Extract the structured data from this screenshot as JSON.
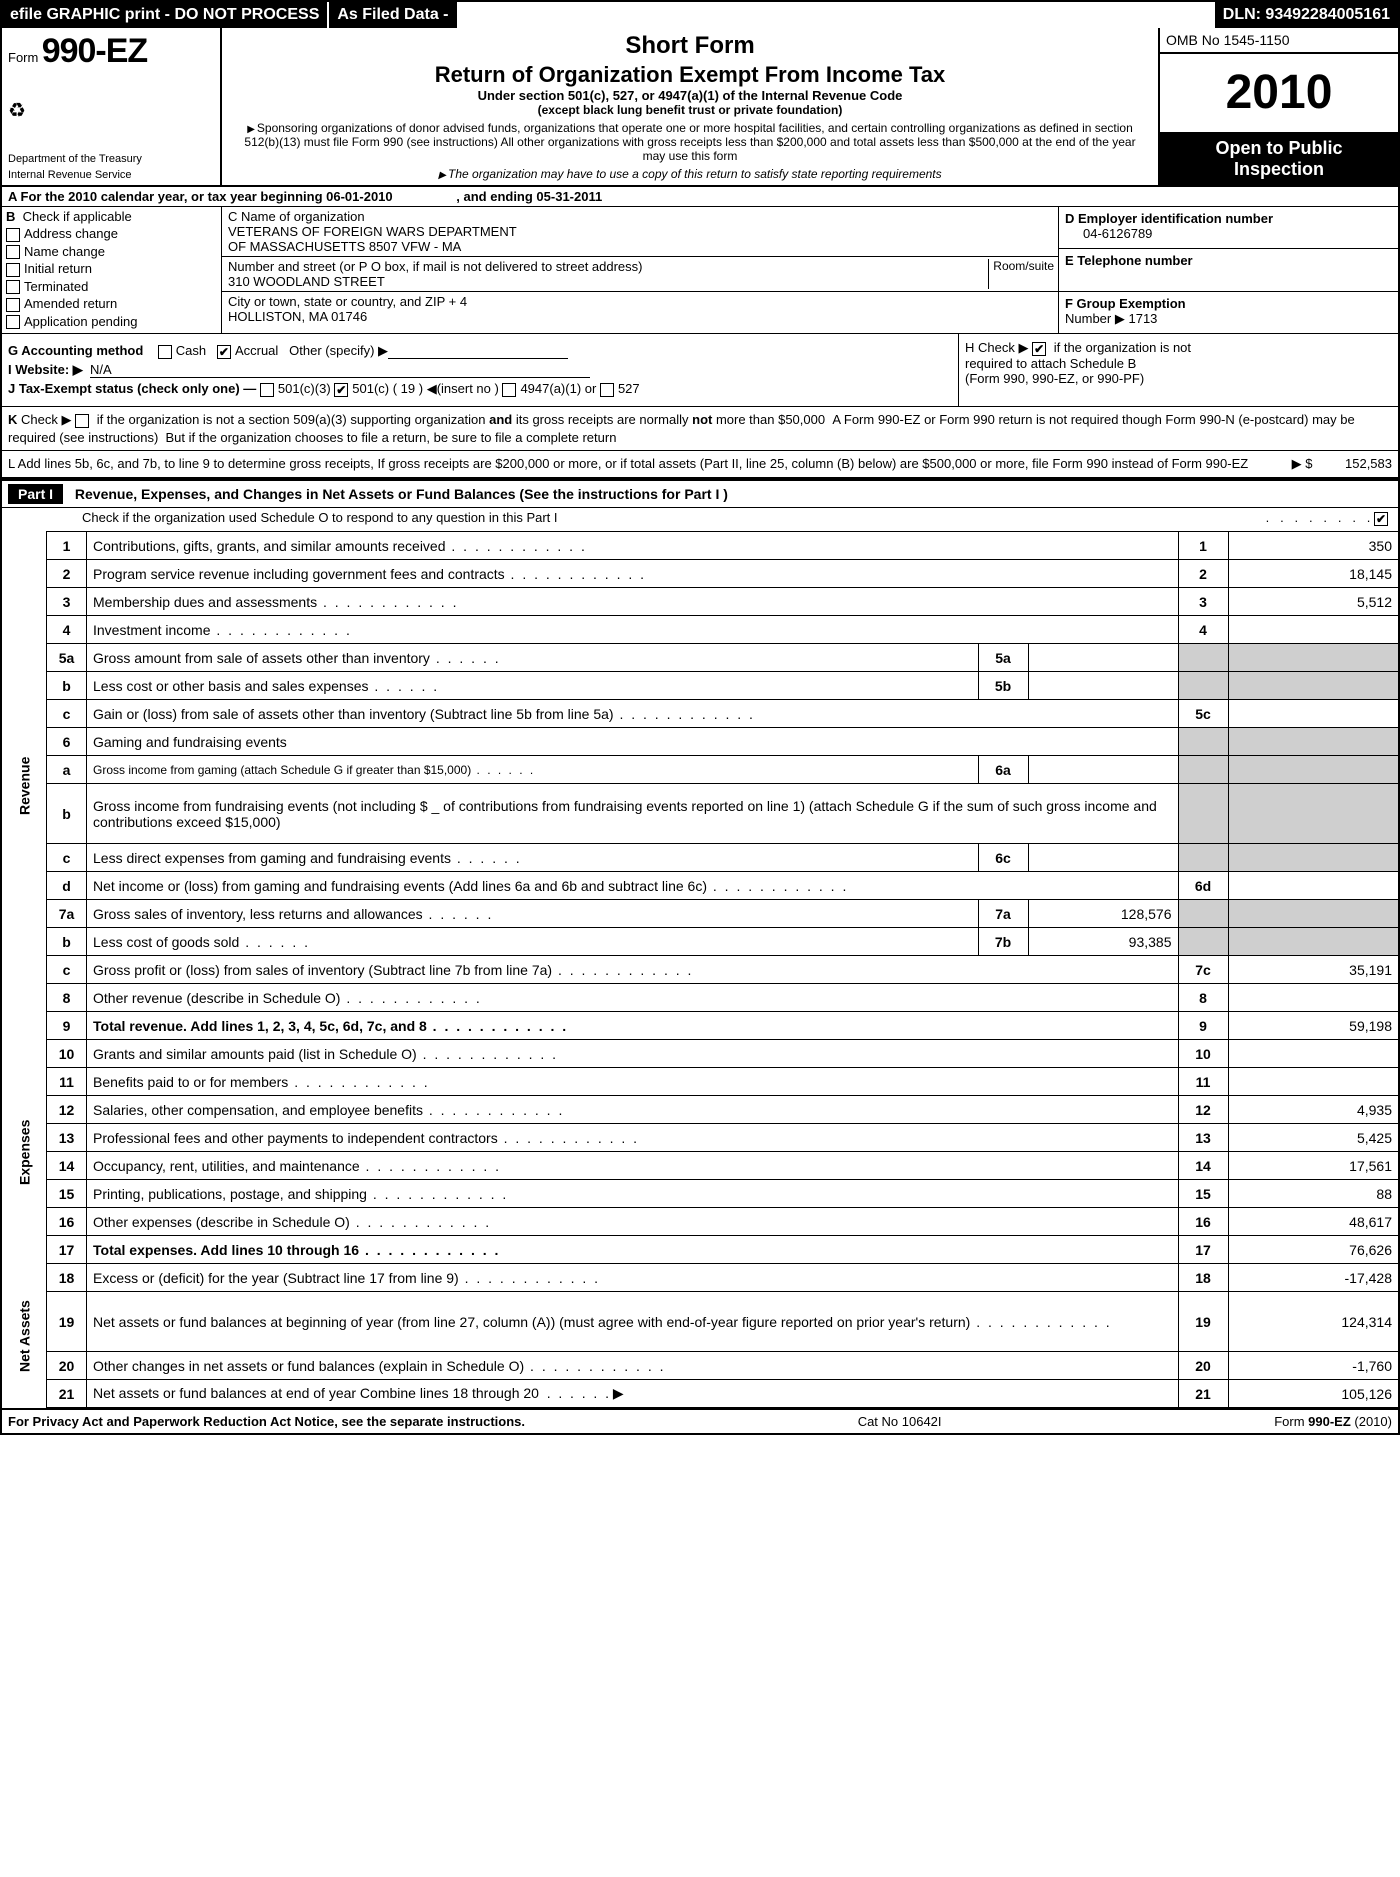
{
  "topbar": {
    "left": "efile GRAPHIC print - DO NOT PROCESS",
    "mid": "As Filed Data -",
    "right": "DLN: 93492284005161"
  },
  "header": {
    "form_prefix": "Form",
    "form_number": "990-EZ",
    "dept": "Department of the Treasury",
    "irs": "Internal Revenue Service",
    "short_form": "Short Form",
    "title": "Return of Organization Exempt From Income Tax",
    "sub1": "Under section 501(c), 527, or 4947(a)(1) of the Internal Revenue Code",
    "sub2": "(except black lung benefit trust or private foundation)",
    "note1": "Sponsoring organizations of donor advised funds, organizations that operate one or more hospital facilities, and certain controlling organizations as defined in section 512(b)(13) must file Form 990 (see instructions) All other organizations with gross receipts less than $200,000 and total assets less than $500,000 at the end of the year may use this form",
    "note2": "The organization may have to use a copy of this return to satisfy state reporting requirements",
    "omb": "OMB No  1545-1150",
    "year": "2010",
    "open1": "Open to Public",
    "open2": "Inspection"
  },
  "lineA": {
    "text_left": "A   For the 2010 calendar year, or tax year beginning 06-01-2010",
    "text_right": ", and ending 05-31-2011"
  },
  "colB": {
    "head": "B   Check if applicable",
    "items": [
      "Address change",
      "Name change",
      "Initial return",
      "Terminated",
      "Amended return",
      "Application pending"
    ]
  },
  "colC": {
    "c1_label": "C Name of organization",
    "c1_val1": "VETERANS OF FOREIGN WARS DEPARTMENT",
    "c1_val2": "OF MASSACHUSETTS 8507 VFW - MA",
    "c2_label": "Number and street (or P  O  box, if mail is not delivered to street address)",
    "c2_room": "Room/suite",
    "c2_val": "310 WOODLAND STREET",
    "c3_label": "City or town, state or country, and ZIP + 4",
    "c3_val": "HOLLISTON, MA  01746"
  },
  "colD": {
    "d_label": "D Employer identification number",
    "d_val": "04-6126789",
    "e_label": "E Telephone number",
    "e_val": "",
    "f_label": "F Group Exemption",
    "f_label2": "Number ▶",
    "f_val": "1713"
  },
  "gij": {
    "g": "G Accounting method",
    "g_cash": "Cash",
    "g_accrual": "Accrual",
    "g_other": "Other (specify) ▶",
    "i": "I Website: ▶",
    "i_val": "N/A",
    "j": "J Tax-Exempt status (check only one) —",
    "j1": "501(c)(3)",
    "j2": "501(c) ( 19 )  ◀(insert no )",
    "j3": "4947(a)(1) or",
    "j4": "527",
    "h1": "H  Check ▶",
    "h2": "if the organization is not",
    "h3": "required to attach Schedule B",
    "h4": "(Form 990, 990-EZ, or 990-PF)"
  },
  "k": "K Check ▶        if the organization is not a section 509(a)(3) supporting organization and its gross receipts are normally not more than $50,000   A Form 990-EZ or Form 990 return is not required though Form 990-N (e-postcard) may be required (see instructions)  But if the organization chooses to file a return, be sure to file a complete return",
  "l": {
    "text": "L Add lines 5b, 6c, and 7b, to line 9 to determine gross receipts, If gross receipts are $200,000 or more, or if total assets (Part II, line 25, column (B) below) are $500,000 or more, file Form 990 instead of Form 990-EZ",
    "arrow": "▶ $",
    "amount": "152,583"
  },
  "part1": {
    "tag": "Part I",
    "title": "Revenue, Expenses, and Changes in Net Assets or Fund Balances (See the instructions for Part I )",
    "sub": "Check if the organization used Schedule O to respond to any question in this Part I"
  },
  "sections": {
    "revenue": "Revenue",
    "expenses": "Expenses",
    "netassets": "Net Assets"
  },
  "rows": [
    {
      "ln": "1",
      "desc": "Contributions, gifts, grants, and similar amounts received",
      "rnum": "1",
      "rval": "350"
    },
    {
      "ln": "2",
      "desc": "Program service revenue including government fees and contracts",
      "rnum": "2",
      "rval": "18,145"
    },
    {
      "ln": "3",
      "desc": "Membership dues and assessments",
      "rnum": "3",
      "rval": "5,512"
    },
    {
      "ln": "4",
      "desc": "Investment income",
      "rnum": "4",
      "rval": ""
    },
    {
      "ln": "5a",
      "desc": "Gross amount from sale of assets other than inventory",
      "subnum": "5a",
      "subval": "",
      "gray": true
    },
    {
      "ln": "b",
      "desc": "Less  cost or other basis and sales expenses",
      "subnum": "5b",
      "subval": "",
      "gray": true
    },
    {
      "ln": "c",
      "desc": "Gain or (loss) from sale of assets other than inventory (Subtract line 5b from line 5a)",
      "rnum": "5c",
      "rval": ""
    },
    {
      "ln": "6",
      "desc": "Gaming and fundraising events",
      "grayall": true
    },
    {
      "ln": "a",
      "desc": "Gross income from gaming (attach Schedule G if greater than $15,000)",
      "subnum": "6a",
      "subval": "",
      "gray": true,
      "small": true
    },
    {
      "ln": "b",
      "desc": "Gross income from fundraising events (not including $ _ of contributions from fundraising events reported on line 1) (attach Schedule G if the sum of such gross income and contributions exceed $15,000)",
      "grayall": true,
      "tall": true
    },
    {
      "ln": "c",
      "desc": "Less  direct expenses from gaming and fundraising events",
      "subnum": "6c",
      "subval": "",
      "gray": true
    },
    {
      "ln": "d",
      "desc": "Net income or (loss) from gaming and fundraising events (Add lines 6a and 6b and subtract line 6c)",
      "rnum": "6d",
      "rval": ""
    },
    {
      "ln": "7a",
      "desc": "Gross sales of inventory, less returns and allowances",
      "subnum": "7a",
      "subval": "128,576",
      "gray": true
    },
    {
      "ln": "b",
      "desc": "Less  cost of goods sold",
      "subnum": "7b",
      "subval": "93,385",
      "gray": true
    },
    {
      "ln": "c",
      "desc": "Gross profit or (loss) from sales of inventory (Subtract line 7b from line 7a)",
      "rnum": "7c",
      "rval": "35,191"
    },
    {
      "ln": "8",
      "desc": "Other revenue (describe in Schedule O)",
      "rnum": "8",
      "rval": ""
    },
    {
      "ln": "9",
      "desc": "Total revenue. Add lines 1, 2, 3, 4, 5c, 6d, 7c, and 8",
      "rnum": "9",
      "rval": "59,198",
      "bold": true
    }
  ],
  "exp_rows": [
    {
      "ln": "10",
      "desc": "Grants and similar amounts paid (list in Schedule O)",
      "rnum": "10",
      "rval": ""
    },
    {
      "ln": "11",
      "desc": "Benefits paid to or for members",
      "rnum": "11",
      "rval": ""
    },
    {
      "ln": "12",
      "desc": "Salaries, other compensation, and employee benefits",
      "rnum": "12",
      "rval": "4,935"
    },
    {
      "ln": "13",
      "desc": "Professional fees and other payments to independent contractors",
      "rnum": "13",
      "rval": "5,425"
    },
    {
      "ln": "14",
      "desc": "Occupancy, rent, utilities, and maintenance",
      "rnum": "14",
      "rval": "17,561"
    },
    {
      "ln": "15",
      "desc": "Printing, publications, postage, and shipping",
      "rnum": "15",
      "rval": "88"
    },
    {
      "ln": "16",
      "desc": "Other expenses (describe in Schedule O)",
      "rnum": "16",
      "rval": "48,617"
    },
    {
      "ln": "17",
      "desc": "Total expenses. Add lines 10 through 16",
      "rnum": "17",
      "rval": "76,626",
      "bold": true
    }
  ],
  "na_rows": [
    {
      "ln": "18",
      "desc": "Excess or (deficit) for the year (Subtract line 17 from line 9)",
      "rnum": "18",
      "rval": "-17,428"
    },
    {
      "ln": "19",
      "desc": "Net assets or fund balances at beginning of year (from line 27, column (A)) (must agree with end-of-year figure reported on prior year's return)",
      "rnum": "19",
      "rval": "124,314",
      "tall": true
    },
    {
      "ln": "20",
      "desc": "Other changes in net assets or fund balances (explain in Schedule O)",
      "rnum": "20",
      "rval": "-1,760"
    },
    {
      "ln": "21",
      "desc": "Net assets or fund balances at end of year  Combine lines 18 through 20",
      "rnum": "21",
      "rval": "105,126",
      "arrow": true
    }
  ],
  "footer": {
    "left": "For Privacy Act and Paperwork Reduction Act Notice, see the separate instructions.",
    "mid": "Cat  No  10642I",
    "right": "Form 990-EZ (2010)"
  }
}
